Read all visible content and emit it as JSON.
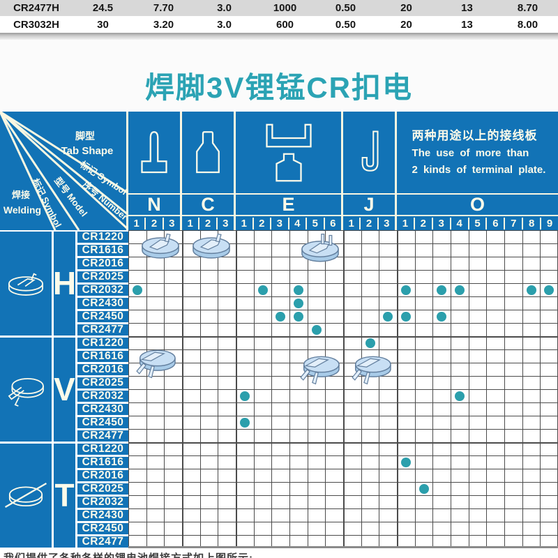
{
  "top_table": {
    "rows": [
      {
        "model": "CR2477H",
        "values": [
          "24.5",
          "7.70",
          "3.0",
          "1000",
          "0.50",
          "20",
          "13",
          "8.70"
        ],
        "shaded": true
      },
      {
        "model": "CR3032H",
        "values": [
          "30",
          "3.20",
          "3.0",
          "600",
          "0.50",
          "20",
          "13",
          "8.00"
        ],
        "shaded": false
      }
    ]
  },
  "title": {
    "text": "焊脚3V锂锰CR扣电",
    "color": "#2BA3B4"
  },
  "matrix": {
    "corner": {
      "tab_shape_cn": "脚型",
      "tab_shape_en": "Tab Shape",
      "symbol_label": "标记 Symbol",
      "number_label": "序号 Number",
      "model_label": "型号 Model",
      "welding_cn": "焊接",
      "welding_en": "Welding"
    },
    "colors": {
      "header_blue": "#1273B6",
      "line_ivory": "#FAF7E2",
      "grid_line": "#4b4b4b",
      "dot_teal": "#2B9FAC",
      "title_teal": "#2BA3B4"
    },
    "groups": [
      {
        "label": "N",
        "count": 3,
        "icon": "tab-n-icon"
      },
      {
        "label": "C",
        "count": 3,
        "icon": "tab-c-icon"
      },
      {
        "label": "E",
        "count": 6,
        "icon": "tab-e-icon"
      },
      {
        "label": "J",
        "count": 3,
        "icon": "tab-j-icon"
      },
      {
        "label": "O",
        "count": 9,
        "icon": "text",
        "note_cn": "两种用途以上的接线板",
        "note_en1": "The use of more than",
        "note_en2": "2 kinds of terminal plate."
      }
    ],
    "models": [
      "CR1220",
      "CR1616",
      "CR2016",
      "CR2025",
      "CR2032",
      "CR2430",
      "CR2450",
      "CR2477"
    ],
    "sections": [
      {
        "symbol": "H",
        "welding_icon": "weld-h-icon"
      },
      {
        "symbol": "V",
        "welding_icon": "weld-v-icon"
      },
      {
        "symbol": "T",
        "welding_icon": "weld-t-icon"
      }
    ],
    "dots": [
      {
        "s": "H",
        "m": "CR2032",
        "g": "N",
        "n": 1
      },
      {
        "s": "H",
        "m": "CR2032",
        "g": "E",
        "n": 2
      },
      {
        "s": "H",
        "m": "CR2032",
        "g": "E",
        "n": 4
      },
      {
        "s": "H",
        "m": "CR2032",
        "g": "O",
        "n": 1
      },
      {
        "s": "H",
        "m": "CR2032",
        "g": "O",
        "n": 3
      },
      {
        "s": "H",
        "m": "CR2032",
        "g": "O",
        "n": 4
      },
      {
        "s": "H",
        "m": "CR2032",
        "g": "O",
        "n": 8
      },
      {
        "s": "H",
        "m": "CR2032",
        "g": "O",
        "n": 9
      },
      {
        "s": "H",
        "m": "CR2430",
        "g": "E",
        "n": 4
      },
      {
        "s": "H",
        "m": "CR2450",
        "g": "E",
        "n": 3
      },
      {
        "s": "H",
        "m": "CR2450",
        "g": "E",
        "n": 4
      },
      {
        "s": "H",
        "m": "CR2450",
        "g": "J",
        "n": 3
      },
      {
        "s": "H",
        "m": "CR2450",
        "g": "O",
        "n": 1
      },
      {
        "s": "H",
        "m": "CR2450",
        "g": "O",
        "n": 3
      },
      {
        "s": "H",
        "m": "CR2477",
        "g": "E",
        "n": 5
      },
      {
        "s": "V",
        "m": "CR1220",
        "g": "J",
        "n": 2
      },
      {
        "s": "V",
        "m": "CR2032",
        "g": "E",
        "n": 1
      },
      {
        "s": "V",
        "m": "CR2032",
        "g": "O",
        "n": 4
      },
      {
        "s": "V",
        "m": "CR2450",
        "g": "E",
        "n": 1
      },
      {
        "s": "T",
        "m": "CR1616",
        "g": "O",
        "n": 1
      },
      {
        "s": "T",
        "m": "CR2025",
        "g": "O",
        "n": 2
      }
    ],
    "batteries": [
      {
        "section": "H",
        "variant": "coin-tab-up",
        "col": 1.8,
        "row": 1.3
      },
      {
        "section": "H",
        "variant": "coin-tab-up",
        "col": 4.65,
        "row": 1.3
      },
      {
        "section": "H",
        "variant": "coin-prongs-up",
        "col": 10.7,
        "row": 1.45
      },
      {
        "section": "V",
        "variant": "coin-tabs-down",
        "col": 1.55,
        "row": 10.0
      },
      {
        "section": "V",
        "variant": "coin-tabs-down",
        "col": 10.7,
        "row": 10.45
      },
      {
        "section": "V",
        "variant": "coin-tabs-down",
        "col": 13.6,
        "row": 10.45
      }
    ]
  },
  "footer": {
    "text": "我们提供了各种各样的锂电池焊接方式如上图所示:"
  }
}
